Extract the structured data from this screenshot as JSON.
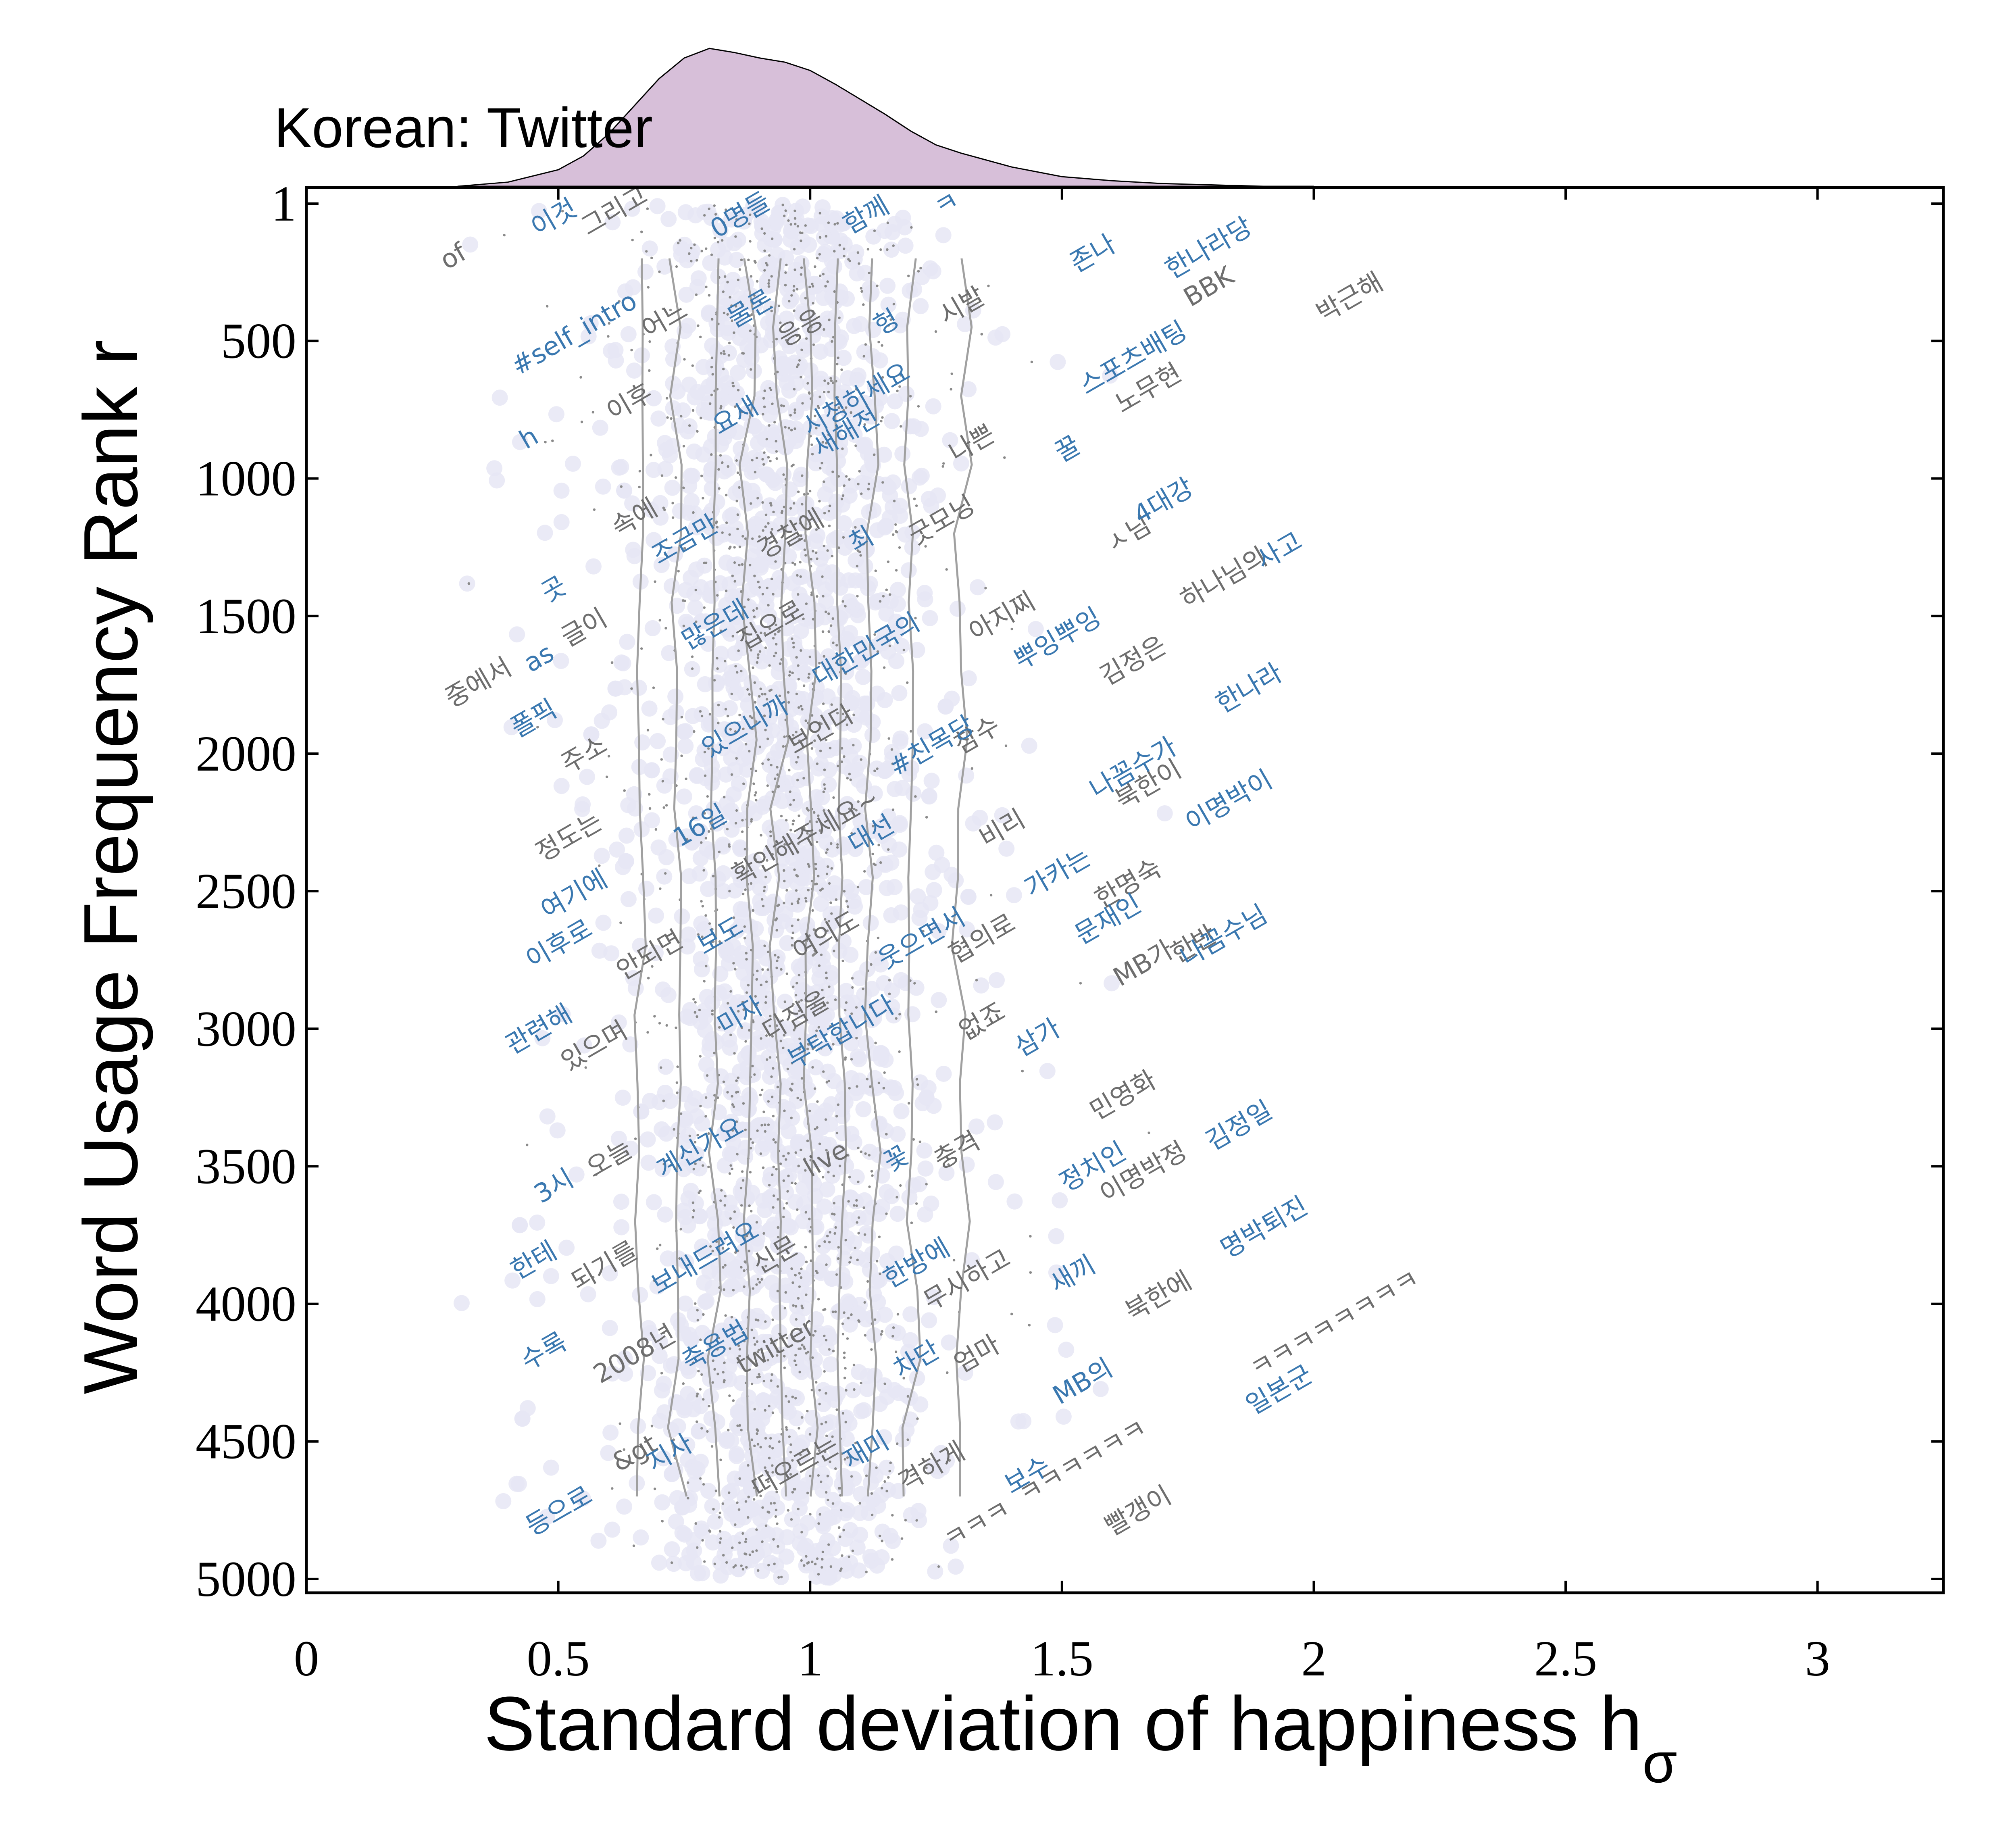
{
  "chart_data": {
    "type": "scatter",
    "title": "Korean: Twitter",
    "xlabel": "Standard deviation of happiness h",
    "xlabel_subscript": "σ",
    "ylabel": "Word Usage Frequency Rank r",
    "xlim": [
      0,
      3.25
    ],
    "ylim": [
      1,
      5050
    ],
    "y_inverted": true,
    "x_ticks": [
      0,
      0.5,
      1,
      1.5,
      2,
      2.5,
      3
    ],
    "x_tick_labels": [
      "0",
      "0.5",
      "1",
      "1.5",
      "2",
      "2.5",
      "3"
    ],
    "y_ticks": [
      1,
      500,
      1000,
      1500,
      2000,
      2500,
      3000,
      3500,
      4000,
      4500,
      5000
    ],
    "y_tick_labels": [
      "1",
      "500",
      "1000",
      "1500",
      "2000",
      "2500",
      "3000",
      "3500",
      "4000",
      "4500",
      "5000"
    ],
    "grid": false,
    "colors": {
      "positive_word": "#3a78b0",
      "negative_word": "#6e6e6e",
      "point_halo": "#e6e6f4",
      "point_dot": "#8a8a8a",
      "contour": "#a0a0a0",
      "density_fill": "#d7bfd9"
    },
    "top_density": {
      "x": [
        0.3,
        0.4,
        0.5,
        0.55,
        0.6,
        0.65,
        0.7,
        0.75,
        0.8,
        0.85,
        0.9,
        0.95,
        1.0,
        1.05,
        1.1,
        1.15,
        1.2,
        1.25,
        1.3,
        1.35,
        1.4,
        1.5,
        1.6,
        1.7,
        1.8,
        1.9,
        2.0
      ],
      "density": [
        0.0,
        0.03,
        0.12,
        0.22,
        0.38,
        0.58,
        0.78,
        0.93,
        1.0,
        0.97,
        0.93,
        0.9,
        0.84,
        0.74,
        0.63,
        0.52,
        0.4,
        0.3,
        0.24,
        0.19,
        0.14,
        0.07,
        0.04,
        0.02,
        0.01,
        0.0,
        0.0
      ]
    },
    "contour_lines_x": [
      0.66,
      0.74,
      0.81,
      0.88,
      0.94,
      1.0,
      1.06,
      1.12,
      1.2,
      1.3
    ],
    "words_positive": [
      {
        "text": "이것",
        "x": 0.5,
        "y": 80
      },
      {
        "text": "0명들",
        "x": 0.87,
        "y": 70
      },
      {
        "text": "함께",
        "x": 1.12,
        "y": 70
      },
      {
        "text": "ㅋ",
        "x": 1.28,
        "y": 30
      },
      {
        "text": "존나",
        "x": 1.57,
        "y": 210
      },
      {
        "text": "한나라당",
        "x": 1.8,
        "y": 190
      },
      {
        "text": "#self_intro",
        "x": 0.54,
        "y": 500
      },
      {
        "text": "물론",
        "x": 0.89,
        "y": 410
      },
      {
        "text": "헝",
        "x": 1.16,
        "y": 460
      },
      {
        "text": "스포츠배팅",
        "x": 1.65,
        "y": 590
      },
      {
        "text": "h",
        "x": 0.45,
        "y": 880
      },
      {
        "text": "요새",
        "x": 0.86,
        "y": 800
      },
      {
        "text": "시청하세요",
        "x": 1.1,
        "y": 740
      },
      {
        "text": "새해전",
        "x": 1.08,
        "y": 860
      },
      {
        "text": "꿀",
        "x": 1.52,
        "y": 920
      },
      {
        "text": "4대강",
        "x": 1.71,
        "y": 1110
      },
      {
        "text": "조금만",
        "x": 0.76,
        "y": 1250
      },
      {
        "text": "최",
        "x": 1.11,
        "y": 1250
      },
      {
        "text": "사고",
        "x": 1.94,
        "y": 1290
      },
      {
        "text": "곳",
        "x": 0.5,
        "y": 1430
      },
      {
        "text": "많은데",
        "x": 0.82,
        "y": 1560
      },
      {
        "text": "대한민국의",
        "x": 1.12,
        "y": 1650
      },
      {
        "text": "뿌잉뿌잉",
        "x": 1.5,
        "y": 1610
      },
      {
        "text": "as",
        "x": 0.47,
        "y": 1680
      },
      {
        "text": "한나라",
        "x": 1.88,
        "y": 1790
      },
      {
        "text": "폴픽",
        "x": 0.46,
        "y": 1900
      },
      {
        "text": "있으니까",
        "x": 0.88,
        "y": 1930
      },
      {
        "text": "#친목당",
        "x": 1.25,
        "y": 2000
      },
      {
        "text": "나꼼수가",
        "x": 1.65,
        "y": 2080
      },
      {
        "text": "이명박이",
        "x": 1.84,
        "y": 2200
      },
      {
        "text": "16일",
        "x": 0.79,
        "y": 2290
      },
      {
        "text": "대선",
        "x": 1.13,
        "y": 2320
      },
      {
        "text": "여기에",
        "x": 0.54,
        "y": 2540
      },
      {
        "text": "가카는",
        "x": 1.5,
        "y": 2460
      },
      {
        "text": "이후로",
        "x": 0.51,
        "y": 2720
      },
      {
        "text": "보도",
        "x": 0.83,
        "y": 2690
      },
      {
        "text": "웃으면서",
        "x": 1.23,
        "y": 2700
      },
      {
        "text": "문재인",
        "x": 1.6,
        "y": 2630
      },
      {
        "text": "나꼼수님",
        "x": 1.83,
        "y": 2690
      },
      {
        "text": "관련해",
        "x": 0.47,
        "y": 3030
      },
      {
        "text": "미자",
        "x": 0.87,
        "y": 2980
      },
      {
        "text": "부탁합니다",
        "x": 1.07,
        "y": 3040
      },
      {
        "text": "삼가",
        "x": 1.46,
        "y": 3060
      },
      {
        "text": "3시",
        "x": 0.5,
        "y": 3600
      },
      {
        "text": "계신가요",
        "x": 0.79,
        "y": 3460
      },
      {
        "text": "꽃",
        "x": 1.18,
        "y": 3500
      },
      {
        "text": "정치인",
        "x": 1.57,
        "y": 3530
      },
      {
        "text": "김정일",
        "x": 1.86,
        "y": 3380
      },
      {
        "text": "한테",
        "x": 0.46,
        "y": 3870
      },
      {
        "text": "보내드려요",
        "x": 0.8,
        "y": 3860
      },
      {
        "text": "한방에",
        "x": 1.22,
        "y": 3880
      },
      {
        "text": "새끼",
        "x": 1.53,
        "y": 3920
      },
      {
        "text": "명박퇴진",
        "x": 1.91,
        "y": 3750
      },
      {
        "text": "수록",
        "x": 0.48,
        "y": 4200
      },
      {
        "text": "축용법",
        "x": 0.82,
        "y": 4180
      },
      {
        "text": "차단",
        "x": 1.22,
        "y": 4230
      },
      {
        "text": "MB의",
        "x": 1.55,
        "y": 4310
      },
      {
        "text": "일본군",
        "x": 1.94,
        "y": 4340
      },
      {
        "text": "지사",
        "x": 0.73,
        "y": 4570
      },
      {
        "text": "재미",
        "x": 1.12,
        "y": 4560
      },
      {
        "text": "보수",
        "x": 1.44,
        "y": 4650
      },
      {
        "text": "등으로",
        "x": 0.51,
        "y": 4780
      }
    ],
    "words_negative": [
      {
        "text": "그리고",
        "x": 0.62,
        "y": 55
      },
      {
        "text": "of",
        "x": 0.3,
        "y": 220
      },
      {
        "text": "어느",
        "x": 0.72,
        "y": 450
      },
      {
        "text": "응응",
        "x": 0.99,
        "y": 480
      },
      {
        "text": "시발",
        "x": 1.31,
        "y": 400
      },
      {
        "text": "BBK",
        "x": 1.8,
        "y": 330
      },
      {
        "text": "박근해",
        "x": 2.08,
        "y": 370
      },
      {
        "text": "이후",
        "x": 0.65,
        "y": 750
      },
      {
        "text": "노무현",
        "x": 1.68,
        "y": 700
      },
      {
        "text": "나쁜",
        "x": 1.33,
        "y": 900
      },
      {
        "text": "속에",
        "x": 0.66,
        "y": 1170
      },
      {
        "text": "경찰에",
        "x": 0.97,
        "y": 1230
      },
      {
        "text": "굿모닝",
        "x": 1.27,
        "y": 1180
      },
      {
        "text": "ㅅ님",
        "x": 1.64,
        "y": 1230
      },
      {
        "text": "하나님의",
        "x": 1.83,
        "y": 1390
      },
      {
        "text": "글이",
        "x": 0.56,
        "y": 1570
      },
      {
        "text": "집으로",
        "x": 0.93,
        "y": 1560
      },
      {
        "text": "아지찌",
        "x": 1.39,
        "y": 1530
      },
      {
        "text": "김정은",
        "x": 1.65,
        "y": 1690
      },
      {
        "text": "중에서",
        "x": 0.35,
        "y": 1770
      },
      {
        "text": "주소",
        "x": 0.56,
        "y": 2030
      },
      {
        "text": "보인다",
        "x": 1.03,
        "y": 1940
      },
      {
        "text": "참수",
        "x": 1.34,
        "y": 1960
      },
      {
        "text": "북한이",
        "x": 1.68,
        "y": 2140
      },
      {
        "text": "정도는",
        "x": 0.53,
        "y": 2330
      },
      {
        "text": "확인해주세요~",
        "x": 1.0,
        "y": 2330
      },
      {
        "text": "비리",
        "x": 1.39,
        "y": 2300
      },
      {
        "text": "한명숙",
        "x": 1.64,
        "y": 2500
      },
      {
        "text": "안되면",
        "x": 0.69,
        "y": 2760
      },
      {
        "text": "여의도",
        "x": 1.04,
        "y": 2690
      },
      {
        "text": "협의로",
        "x": 1.35,
        "y": 2700
      },
      {
        "text": "MB가",
        "x": 1.67,
        "y": 2790
      },
      {
        "text": "한반",
        "x": 1.77,
        "y": 2720
      },
      {
        "text": "있으며",
        "x": 0.58,
        "y": 3090
      },
      {
        "text": "다짐을",
        "x": 0.98,
        "y": 2980
      },
      {
        "text": "없죠",
        "x": 1.35,
        "y": 3000
      },
      {
        "text": "민영화",
        "x": 1.63,
        "y": 3270
      },
      {
        "text": "오늘",
        "x": 0.61,
        "y": 3500
      },
      {
        "text": "live",
        "x": 1.04,
        "y": 3500
      },
      {
        "text": "충격",
        "x": 1.3,
        "y": 3470
      },
      {
        "text": "이명박정",
        "x": 1.67,
        "y": 3550
      },
      {
        "text": "되기를",
        "x": 0.6,
        "y": 3890
      },
      {
        "text": "신문",
        "x": 0.94,
        "y": 3850
      },
      {
        "text": "무시하고",
        "x": 1.32,
        "y": 3940
      },
      {
        "text": "북한에",
        "x": 1.7,
        "y": 4000
      },
      {
        "text": "ㅋㅋㅋㅋㅋㅋㅋㅋ",
        "x": 2.05,
        "y": 4100
      },
      {
        "text": "2008년",
        "x": 0.66,
        "y": 4210
      },
      {
        "text": "twitter",
        "x": 0.94,
        "y": 4180
      },
      {
        "text": "엄마",
        "x": 1.34,
        "y": 4210
      },
      {
        "text": "&gt",
        "x": 0.66,
        "y": 4570
      },
      {
        "text": "떠오르는",
        "x": 0.98,
        "y": 4620
      },
      {
        "text": "격하게",
        "x": 1.25,
        "y": 4620
      },
      {
        "text": "ㅋㅋㅋㅋㅋㅋ",
        "x": 1.55,
        "y": 4600
      },
      {
        "text": "빨갱이",
        "x": 1.66,
        "y": 4780
      },
      {
        "text": "ㅋㅋㅋ",
        "x": 1.34,
        "y": 4830
      }
    ]
  }
}
